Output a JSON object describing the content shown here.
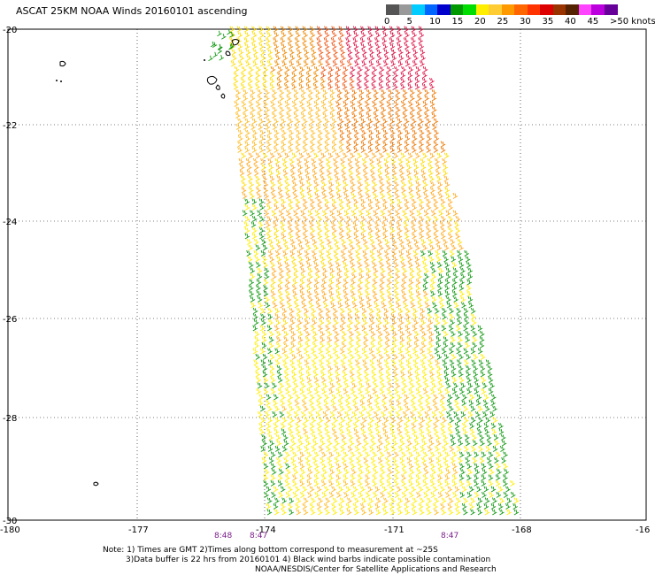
{
  "title": "ASCAT 25KM NOAA Winds 20160101 ascending",
  "colorbar": {
    "colors": [
      "#555555",
      "#999999",
      "#00ccff",
      "#0066ff",
      "#0000cc",
      "#009900",
      "#00dd00",
      "#ffee00",
      "#ffcc33",
      "#ff9900",
      "#ff6600",
      "#ff3300",
      "#dd0000",
      "#993300",
      "#552200",
      "#ff44ff",
      "#bb00dd",
      "#660099"
    ],
    "labels": [
      "0",
      "5",
      "10",
      "15",
      "20",
      "25",
      "30",
      "35",
      "40",
      "45",
      ">50 knots"
    ]
  },
  "axes": {
    "lon_labels": [
      "-180",
      "-177",
      "-174",
      "-171",
      "-168",
      "-16"
    ],
    "lat_labels": [
      "-20",
      "-22",
      "-24",
      "-26",
      "-28",
      "-30"
    ],
    "lon_range": [
      -180,
      -165
    ],
    "lat_range": [
      -20,
      -30
    ]
  },
  "time_labels": [
    "8:48",
    "8:47",
    "8:47"
  ],
  "note": {
    "line1": "Note: 1) Times are GMT 2)Times along bottom correspond to measurement at ~25S",
    "line2": "3)Data buffer is 22 hrs from 20160101 4) Black wind barbs indicate possible contamination",
    "line3": "NOAA/NESDIS/Center for Satellite Applications and Research"
  }
}
